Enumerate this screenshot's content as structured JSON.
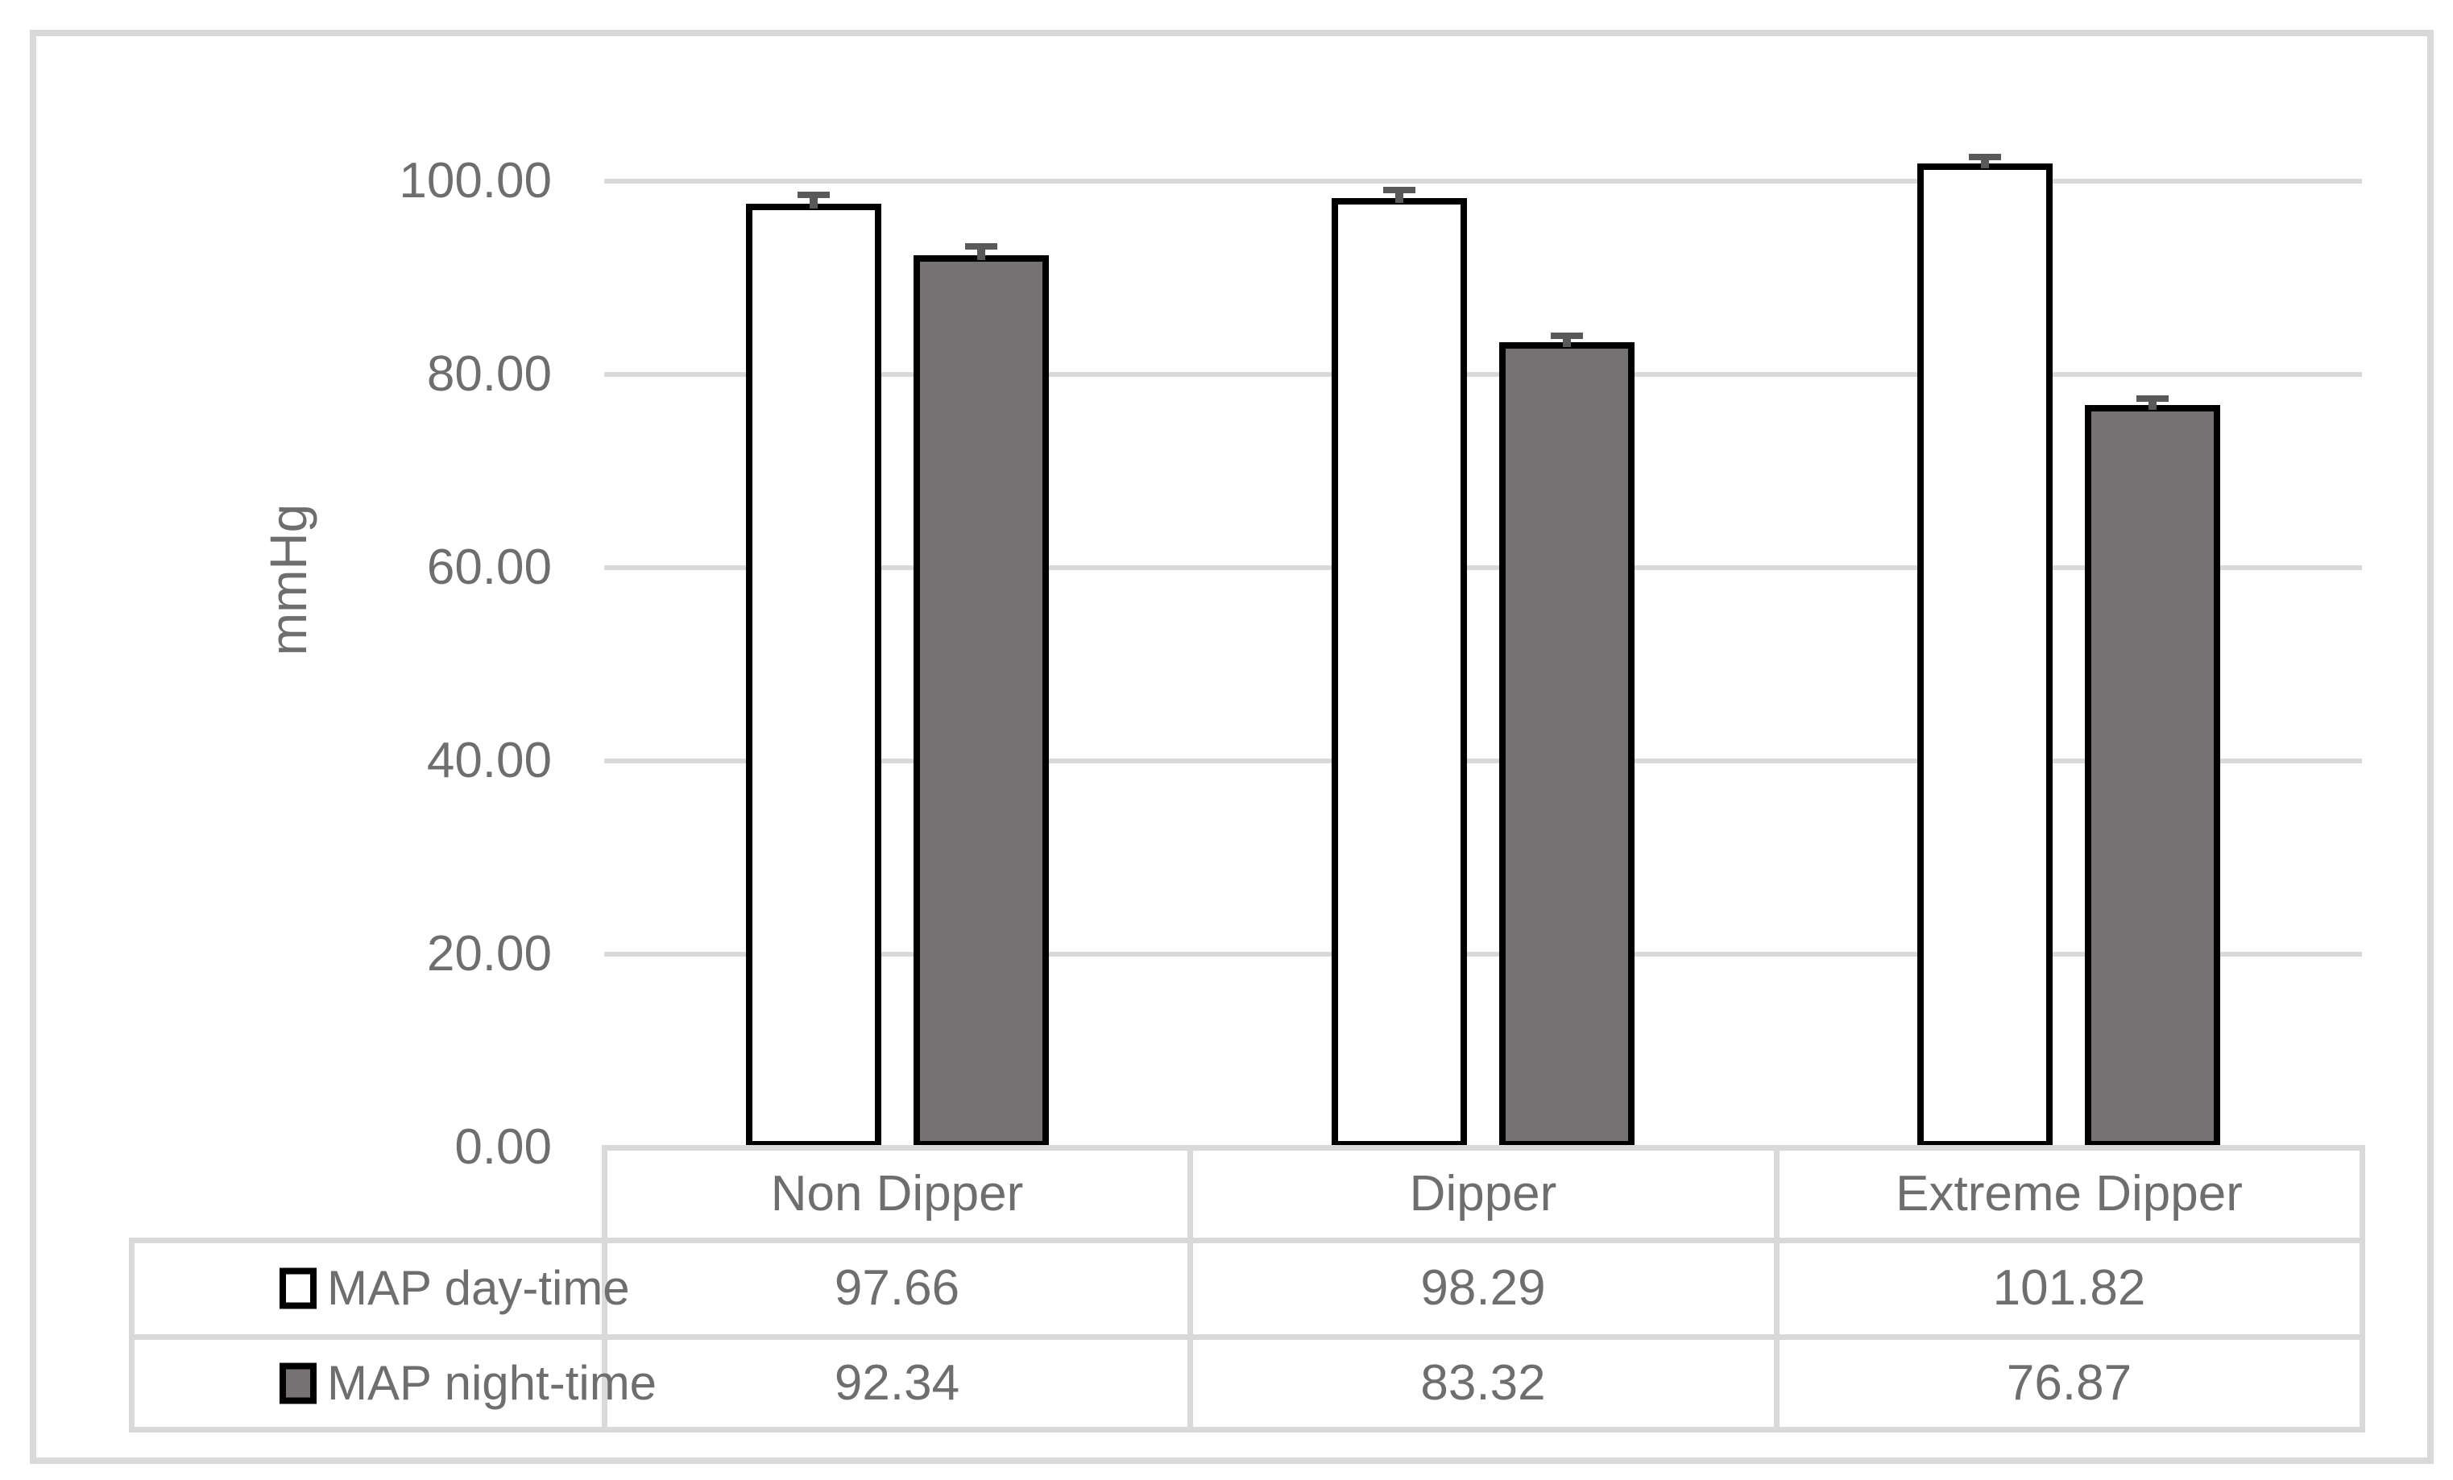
{
  "chart_data": {
    "type": "bar",
    "title": "",
    "ylabel": "mmHg",
    "xlabel": "",
    "categories": [
      "Non Dipper",
      "Dipper",
      "Extreme Dipper"
    ],
    "series": [
      {
        "name": "MAP day-time",
        "values": [
          97.66,
          98.29,
          101.82
        ],
        "errors_plus": [
          0.9,
          0.8,
          0.7
        ],
        "fill": "#ffffff",
        "border": "#000000"
      },
      {
        "name": "MAP night-time",
        "values": [
          92.34,
          83.32,
          76.87
        ],
        "errors_plus": [
          0.9,
          0.7,
          0.6
        ],
        "fill": "#767172",
        "border": "#000000"
      }
    ],
    "ylim": [
      0,
      110
    ],
    "yticks": [
      {
        "value": 0,
        "label": "0.00"
      },
      {
        "value": 20,
        "label": "20.00"
      },
      {
        "value": 40,
        "label": "40.00"
      },
      {
        "value": 60,
        "label": "60.00"
      },
      {
        "value": 80,
        "label": "80.00"
      },
      {
        "value": 100,
        "label": "100.00"
      }
    ],
    "grid": true,
    "legend_position": "data-table-left",
    "colors": {
      "background": "#ffffff",
      "frame_border": "#d9d9d9",
      "gridline": "#d9d9d9",
      "table_border": "#d9d9d9",
      "text": "#6e6e6e",
      "error_bar": "#595959",
      "bar_border": "#000000",
      "day_fill": "#ffffff",
      "night_fill": "#767172"
    }
  }
}
